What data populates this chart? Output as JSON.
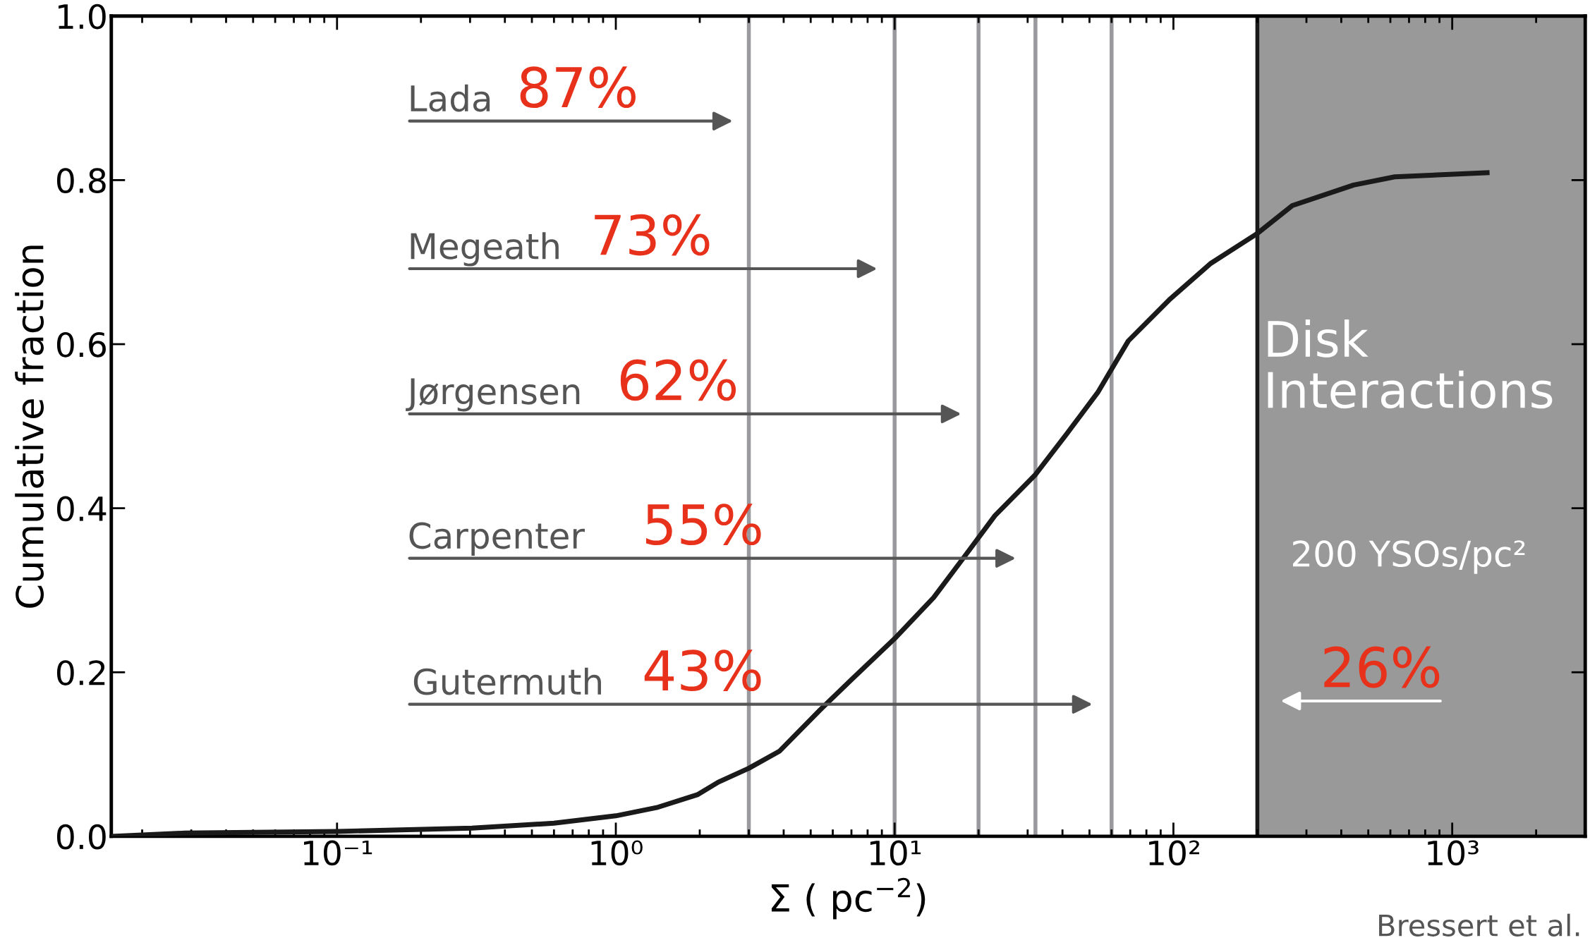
{
  "chart_data": {
    "type": "line",
    "xlabel": "Σ ( pc$^{−2}$)",
    "ylabel": "Cumulative fraction",
    "log": "x",
    "grid": false,
    "marker": "none",
    "line_style": "solid",
    "xlim": [
      0.0155,
      3000
    ],
    "ylim": [
      0,
      1.0
    ],
    "xticks": [
      {
        "value": 0.1,
        "label": "10⁻¹"
      },
      {
        "value": 1,
        "label": "10⁰"
      },
      {
        "value": 10,
        "label": "10¹"
      },
      {
        "value": 100,
        "label": "10²"
      },
      {
        "value": 1000,
        "label": "10³"
      }
    ],
    "yticks": [
      {
        "value": 0,
        "label": "0.0"
      },
      {
        "value": 0.2,
        "label": "0.2"
      },
      {
        "value": 0.4,
        "label": "0.4"
      },
      {
        "value": 0.6,
        "label": "0.6"
      },
      {
        "value": 0.8,
        "label": "0.8"
      },
      {
        "value": 1.0,
        "label": "1.0"
      }
    ],
    "series": [
      {
        "color": "#1a1a1a",
        "x": [
          0.0155,
          0.0285,
          0.1,
          0.305,
          0.6,
          1.0,
          1.4,
          1.97,
          2.33,
          3.0,
          3.87,
          5.4,
          7.0,
          10,
          13.8,
          17.8,
          22.9,
          32,
          41.5,
          53.5,
          68.9,
          96.6,
          135.5,
          200,
          267,
          443,
          622,
          1334
        ],
        "values": [
          0,
          0.004,
          0.006,
          0.01,
          0.016,
          0.025,
          0.035,
          0.051,
          0.066,
          0.083,
          0.104,
          0.154,
          0.191,
          0.241,
          0.291,
          0.341,
          0.391,
          0.441,
          0.491,
          0.541,
          0.604,
          0.654,
          0.698,
          0.735,
          0.769,
          0.794,
          0.804,
          0.809
        ]
      }
    ],
    "ref_lines": [
      {
        "axis": "x",
        "value": 3,
        "color": "#9a9a9e"
      },
      {
        "axis": "x",
        "value": 10,
        "color": "#9a9a9e"
      },
      {
        "axis": "x",
        "value": 20,
        "color": "#9a9a9e"
      },
      {
        "axis": "x",
        "value": 32,
        "color": "#9a9a9e"
      },
      {
        "axis": "x",
        "value": 60,
        "color": "#9a9a9e"
      },
      {
        "axis": "x",
        "value": 200,
        "color": "#1a1a1a"
      }
    ],
    "bands": [
      {
        "axis": "x",
        "from": 200,
        "to": 3000,
        "label": "Disk\nInteractions",
        "color": "#999999"
      }
    ],
    "annotations": [
      "Lada",
      "87%",
      "Megeath",
      "73%",
      "Jørgensen",
      "62%",
      "Carpenter",
      "55%",
      "Gutermuth",
      "43%",
      "26%",
      "200 YSOs/pc²",
      "Bressert et al."
    ]
  }
}
